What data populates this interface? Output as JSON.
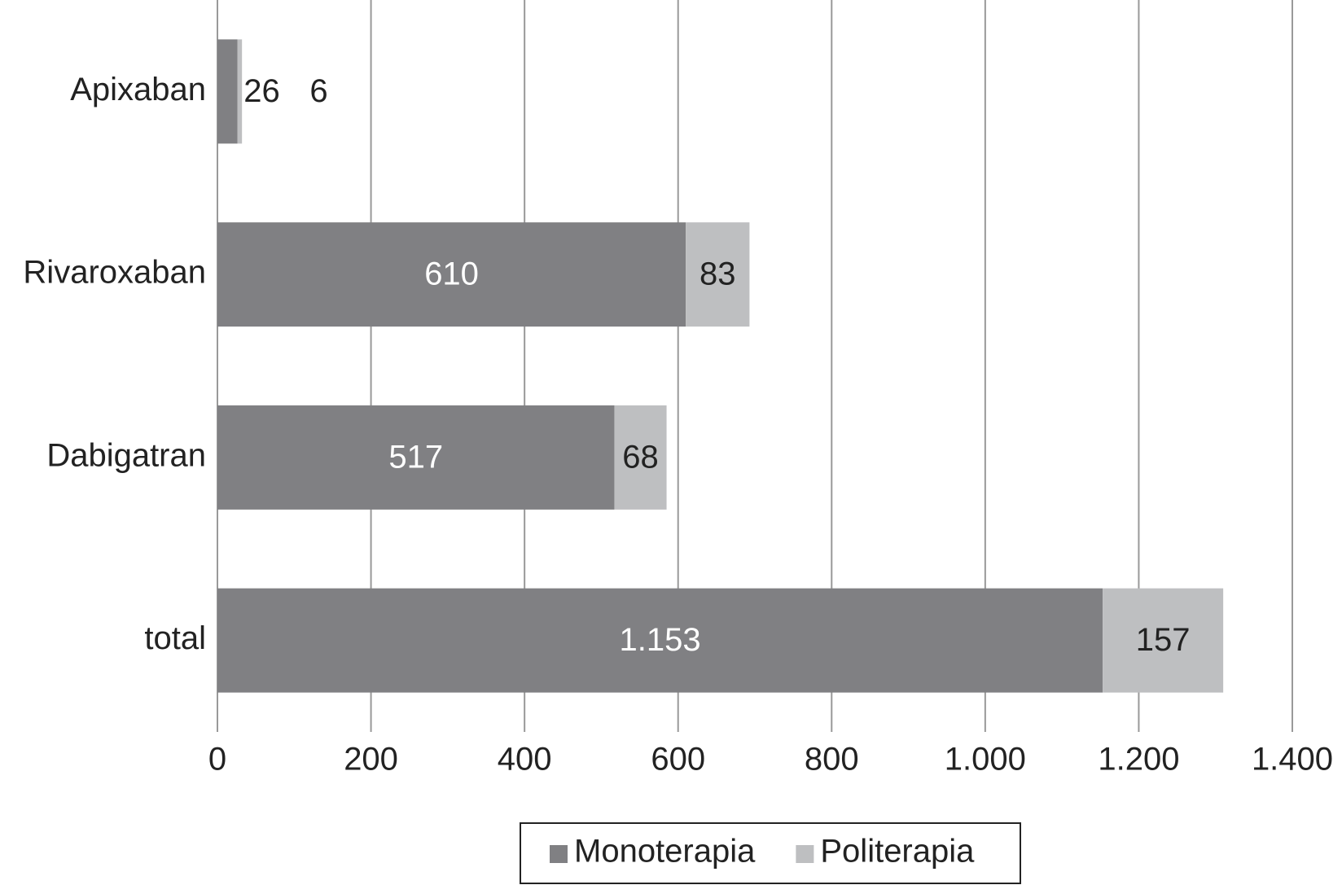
{
  "chart_data": {
    "type": "stacked-bar-horizontal",
    "categories": [
      "Apixaban",
      "Rivaroxaban",
      "Dabigatran",
      "total"
    ],
    "series": [
      {
        "name": "Monoterapia",
        "color": "#808083",
        "values": [
          26,
          610,
          517,
          1153
        ],
        "value_labels": [
          "26",
          "610",
          "517",
          "1.153"
        ]
      },
      {
        "name": "Politerapia",
        "color": "#bebfc1",
        "values": [
          6,
          83,
          68,
          157
        ]
      }
    ],
    "xlim": [
      0,
      1400
    ],
    "xticks": [
      0,
      200,
      400,
      600,
      800,
      {
        "value": 1000,
        "label": "1.000"
      },
      {
        "value": 1200,
        "label": "1.200"
      },
      {
        "value": 1400,
        "label": "1.400"
      }
    ],
    "grid": true,
    "legend": "bottom"
  }
}
